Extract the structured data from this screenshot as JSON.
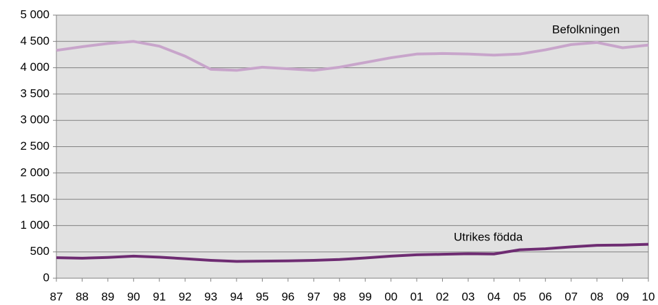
{
  "chart_data": {
    "type": "line",
    "categories": [
      "87",
      "88",
      "89",
      "90",
      "91",
      "92",
      "93",
      "94",
      "95",
      "96",
      "97",
      "98",
      "99",
      "00",
      "01",
      "02",
      "03",
      "04",
      "05",
      "06",
      "07",
      "08",
      "09",
      "10"
    ],
    "series": [
      {
        "name": "Befolkningen",
        "color": "#c8a5cb",
        "values": [
          4330,
          4400,
          4460,
          4500,
          4410,
          4220,
          3970,
          3950,
          4010,
          3980,
          3950,
          4010,
          4100,
          4190,
          4260,
          4270,
          4260,
          4240,
          4260,
          4340,
          4440,
          4480,
          4380,
          4430
        ]
      },
      {
        "name": "Utrikes födda",
        "color": "#6e2c72",
        "values": [
          390,
          380,
          395,
          420,
          400,
          370,
          340,
          320,
          325,
          330,
          340,
          355,
          385,
          420,
          445,
          455,
          465,
          460,
          540,
          560,
          595,
          625,
          630,
          645
        ]
      }
    ],
    "ylim": [
      0,
      5000
    ],
    "yticks": [
      0,
      500,
      {
        "value": 1000,
        "label": "1 000"
      },
      {
        "value": 1500,
        "label": "1 500"
      },
      {
        "value": 2000,
        "label": "2 000"
      },
      {
        "value": 2500,
        "label": "2 500"
      },
      {
        "value": 3000,
        "label": "3 000"
      },
      {
        "value": 3500,
        "label": "3 500"
      },
      {
        "value": 4000,
        "label": "4 000"
      },
      {
        "value": 4500,
        "label": "4 500"
      },
      {
        "value": 5000,
        "label": "5 000"
      }
    ],
    "grid": true
  }
}
